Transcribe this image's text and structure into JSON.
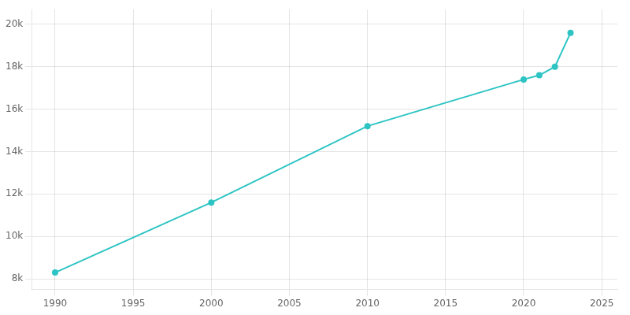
{
  "chart_data": {
    "type": "line",
    "x": [
      1990,
      2000,
      2010,
      2020,
      2021,
      2022,
      2023
    ],
    "values": [
      8300,
      11600,
      15200,
      17400,
      17600,
      18000,
      19600
    ],
    "color": "#2EC4C4",
    "marker": "circle",
    "xlim": [
      1988.5,
      2026
    ],
    "xticks": [
      1990,
      1995,
      2000,
      2005,
      2010,
      2015,
      2020,
      2025
    ],
    "ylim": [
      7500,
      20700
    ],
    "yticks": [
      {
        "value": 8000,
        "label": "8k"
      },
      {
        "value": 10000,
        "label": "10k"
      },
      {
        "value": 12000,
        "label": "12k"
      },
      {
        "value": 14000,
        "label": "14k"
      },
      {
        "value": 16000,
        "label": "16k"
      },
      {
        "value": 18000,
        "label": "18k"
      },
      {
        "value": 20000,
        "label": "20k"
      }
    ],
    "grid": true
  }
}
